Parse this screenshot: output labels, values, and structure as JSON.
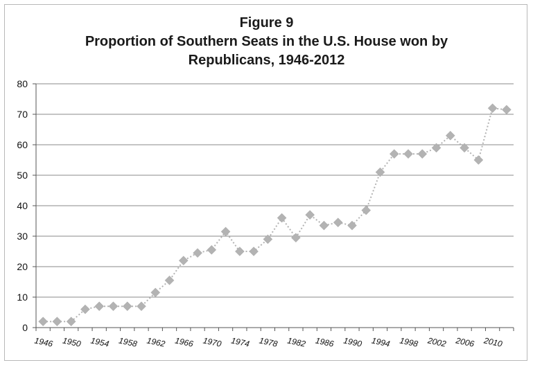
{
  "chart_data": {
    "type": "line",
    "title_lines": [
      "Figure 9",
      "Proportion of  Southern Seats in the U.S. House won by",
      "Republicans, 1946-2012"
    ],
    "xlabel": "",
    "ylabel": "",
    "ylim": [
      0,
      80
    ],
    "yticks": [
      "0",
      "10",
      "20",
      "30",
      "40",
      "50",
      "60",
      "70",
      "80"
    ],
    "xtick_labels": [
      "1946",
      "1950",
      "1954",
      "1958",
      "1962",
      "1966",
      "1970",
      "1974",
      "1978",
      "1982",
      "1986",
      "1990",
      "1994",
      "1998",
      "2002",
      "2006",
      "2010"
    ],
    "grid": true,
    "marker": "diamond",
    "line_style": "dotted",
    "color": "#b3b3b3",
    "x": [
      1946,
      1948,
      1950,
      1952,
      1954,
      1956,
      1958,
      1960,
      1962,
      1964,
      1966,
      1968,
      1970,
      1972,
      1974,
      1976,
      1978,
      1980,
      1982,
      1984,
      1986,
      1988,
      1990,
      1992,
      1994,
      1996,
      1998,
      2000,
      2002,
      2004,
      2006,
      2008,
      2010,
      2012
    ],
    "values": [
      2,
      2,
      2,
      6,
      7,
      7,
      7,
      7,
      11.5,
      15.5,
      22,
      24.5,
      25.5,
      31.5,
      25,
      25,
      29,
      36,
      29.5,
      37,
      33.5,
      34.5,
      33.5,
      38.5,
      51,
      57,
      57,
      57,
      59,
      63,
      59,
      55,
      72,
      71.5
    ]
  }
}
